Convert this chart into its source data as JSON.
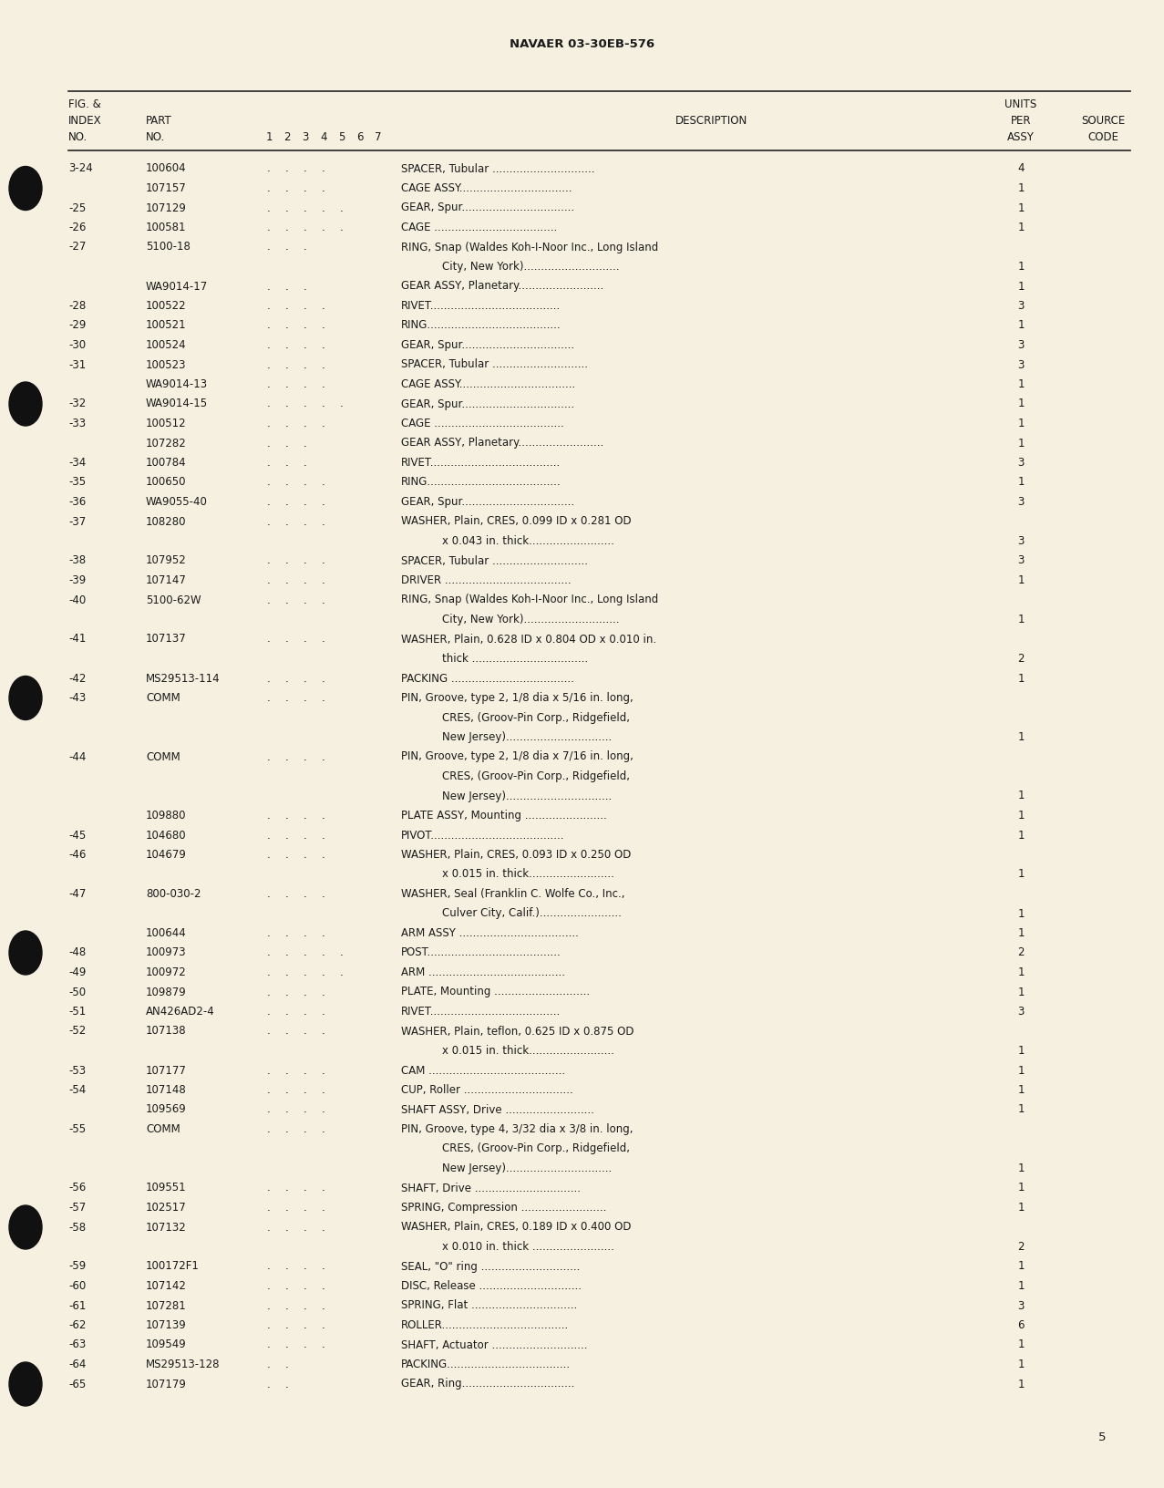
{
  "page_title": "NAVAER 03-30EB-576",
  "page_number": "5",
  "bg_color": "#f5f0e0",
  "rows": [
    {
      "fig": "3-24",
      "part": "100604",
      "d1": ".",
      "d2": ".",
      "d3": ".",
      "d4": ".",
      "d5": "",
      "d6": "",
      "d7": "",
      "desc": "SPACER, Tubular ..............................",
      "qty": "4"
    },
    {
      "fig": "",
      "part": "107157",
      "d1": ".",
      "d2": ".",
      "d3": ".",
      "d4": ".",
      "d5": "",
      "d6": "",
      "d7": "",
      "desc": "CAGE ASSY.................................",
      "qty": "1"
    },
    {
      "fig": "-25",
      "part": "107129",
      "d1": ".",
      "d2": ".",
      "d3": ".",
      "d4": ".",
      "d5": ".",
      "d6": "",
      "d7": "",
      "desc": "GEAR, Spur.................................",
      "qty": "1"
    },
    {
      "fig": "-26",
      "part": "100581",
      "d1": ".",
      "d2": ".",
      "d3": ".",
      "d4": ".",
      "d5": ".",
      "d6": "",
      "d7": "",
      "desc": "CAGE ....................................",
      "qty": "1"
    },
    {
      "fig": "-27",
      "part": "5100-18",
      "d1": ".",
      "d2": ".",
      "d3": ".",
      "d4": "",
      "d5": "",
      "d6": "",
      "d7": "",
      "desc": "RING, Snap (Waldes Koh-I-Noor Inc., Long Island",
      "qty": ""
    },
    {
      "fig": "",
      "part": "",
      "d1": "",
      "d2": "",
      "d3": "",
      "d4": "",
      "d5": "",
      "d6": "",
      "d7": "",
      "desc": "            City, New York)............................",
      "qty": "1"
    },
    {
      "fig": "",
      "part": "WA9014-17",
      "d1": ".",
      "d2": ".",
      "d3": ".",
      "d4": "",
      "d5": "",
      "d6": "",
      "d7": "",
      "desc": "GEAR ASSY, Planetary.........................",
      "qty": "1"
    },
    {
      "fig": "-28",
      "part": "100522",
      "d1": ".",
      "d2": ".",
      "d3": ".",
      "d4": ".",
      "d5": "",
      "d6": "",
      "d7": "",
      "desc": "RIVET......................................",
      "qty": "3"
    },
    {
      "fig": "-29",
      "part": "100521",
      "d1": ".",
      "d2": ".",
      "d3": ".",
      "d4": ".",
      "d5": "",
      "d6": "",
      "d7": "",
      "desc": "RING.......................................",
      "qty": "1"
    },
    {
      "fig": "-30",
      "part": "100524",
      "d1": ".",
      "d2": ".",
      "d3": ".",
      "d4": ".",
      "d5": "",
      "d6": "",
      "d7": "",
      "desc": "GEAR, Spur.................................",
      "qty": "3"
    },
    {
      "fig": "-31",
      "part": "100523",
      "d1": ".",
      "d2": ".",
      "d3": ".",
      "d4": ".",
      "d5": "",
      "d6": "",
      "d7": "",
      "desc": "SPACER, Tubular ............................",
      "qty": "3"
    },
    {
      "fig": "",
      "part": "WA9014-13",
      "d1": ".",
      "d2": ".",
      "d3": ".",
      "d4": ".",
      "d5": "",
      "d6": "",
      "d7": "",
      "desc": "CAGE ASSY..................................",
      "qty": "1"
    },
    {
      "fig": "-32",
      "part": "WA9014-15",
      "d1": ".",
      "d2": ".",
      "d3": ".",
      "d4": ".",
      "d5": ".",
      "d6": "",
      "d7": "",
      "desc": "GEAR, Spur.................................",
      "qty": "1"
    },
    {
      "fig": "-33",
      "part": "100512",
      "d1": ".",
      "d2": ".",
      "d3": ".",
      "d4": ".",
      "d5": "",
      "d6": "",
      "d7": "",
      "desc": "CAGE ......................................",
      "qty": "1"
    },
    {
      "fig": "",
      "part": "107282",
      "d1": ".",
      "d2": ".",
      "d3": ".",
      "d4": "",
      "d5": "",
      "d6": "",
      "d7": "",
      "desc": "GEAR ASSY, Planetary.........................",
      "qty": "1"
    },
    {
      "fig": "-34",
      "part": "100784",
      "d1": ".",
      "d2": ".",
      "d3": ".",
      "d4": "",
      "d5": "",
      "d6": "",
      "d7": "",
      "desc": "RIVET......................................",
      "qty": "3"
    },
    {
      "fig": "-35",
      "part": "100650",
      "d1": ".",
      "d2": ".",
      "d3": ".",
      "d4": ".",
      "d5": "",
      "d6": "",
      "d7": "",
      "desc": "RING.......................................",
      "qty": "1"
    },
    {
      "fig": "-36",
      "part": "WA9055-40",
      "d1": ".",
      "d2": ".",
      "d3": ".",
      "d4": ".",
      "d5": "",
      "d6": "",
      "d7": "",
      "desc": "GEAR, Spur.................................",
      "qty": "3"
    },
    {
      "fig": "-37",
      "part": "108280",
      "d1": ".",
      "d2": ".",
      "d3": ".",
      "d4": ".",
      "d5": "",
      "d6": "",
      "d7": "",
      "desc": "WASHER, Plain, CRES, 0.099 ID x 0.281 OD",
      "qty": ""
    },
    {
      "fig": "",
      "part": "",
      "d1": "",
      "d2": "",
      "d3": "",
      "d4": "",
      "d5": "",
      "d6": "",
      "d7": "",
      "desc": "            x 0.043 in. thick.........................",
      "qty": "3"
    },
    {
      "fig": "-38",
      "part": "107952",
      "d1": ".",
      "d2": ".",
      "d3": ".",
      "d4": ".",
      "d5": "",
      "d6": "",
      "d7": "",
      "desc": "SPACER, Tubular ............................",
      "qty": "3"
    },
    {
      "fig": "-39",
      "part": "107147",
      "d1": ".",
      "d2": ".",
      "d3": ".",
      "d4": ".",
      "d5": "",
      "d6": "",
      "d7": "",
      "desc": "DRIVER .....................................",
      "qty": "1"
    },
    {
      "fig": "-40",
      "part": "5100-62W",
      "d1": ".",
      "d2": ".",
      "d3": ".",
      "d4": ".",
      "d5": "",
      "d6": "",
      "d7": "",
      "desc": "RING, Snap (Waldes Koh-I-Noor Inc., Long Island",
      "qty": ""
    },
    {
      "fig": "",
      "part": "",
      "d1": "",
      "d2": "",
      "d3": "",
      "d4": "",
      "d5": "",
      "d6": "",
      "d7": "",
      "desc": "            City, New York)............................",
      "qty": "1"
    },
    {
      "fig": "-41",
      "part": "107137",
      "d1": ".",
      "d2": ".",
      "d3": ".",
      "d4": ".",
      "d5": "",
      "d6": "",
      "d7": "",
      "desc": "WASHER, Plain, 0.628 ID x 0.804 OD x 0.010 in.",
      "qty": ""
    },
    {
      "fig": "",
      "part": "",
      "d1": "",
      "d2": "",
      "d3": "",
      "d4": "",
      "d5": "",
      "d6": "",
      "d7": "",
      "desc": "            thick ..................................",
      "qty": "2"
    },
    {
      "fig": "-42",
      "part": "MS29513-114",
      "d1": ".",
      "d2": ".",
      "d3": ".",
      "d4": ".",
      "d5": "",
      "d6": "",
      "d7": "",
      "desc": "PACKING ....................................",
      "qty": "1"
    },
    {
      "fig": "-43",
      "part": "COMM",
      "d1": ".",
      "d2": ".",
      "d3": ".",
      "d4": ".",
      "d5": "",
      "d6": "",
      "d7": "",
      "desc": "PIN, Groove, type 2, 1/8 dia x 5/16 in. long,",
      "qty": ""
    },
    {
      "fig": "",
      "part": "",
      "d1": "",
      "d2": "",
      "d3": "",
      "d4": "",
      "d5": "",
      "d6": "",
      "d7": "",
      "desc": "            CRES, (Groov-Pin Corp., Ridgefield,",
      "qty": ""
    },
    {
      "fig": "",
      "part": "",
      "d1": "",
      "d2": "",
      "d3": "",
      "d4": "",
      "d5": "",
      "d6": "",
      "d7": "",
      "desc": "            New Jersey)...............................",
      "qty": "1"
    },
    {
      "fig": "-44",
      "part": "COMM",
      "d1": ".",
      "d2": ".",
      "d3": ".",
      "d4": ".",
      "d5": "",
      "d6": "",
      "d7": "",
      "desc": "PIN, Groove, type 2, 1/8 dia x 7/16 in. long,",
      "qty": ""
    },
    {
      "fig": "",
      "part": "",
      "d1": "",
      "d2": "",
      "d3": "",
      "d4": "",
      "d5": "",
      "d6": "",
      "d7": "",
      "desc": "            CRES, (Groov-Pin Corp., Ridgefield,",
      "qty": ""
    },
    {
      "fig": "",
      "part": "",
      "d1": "",
      "d2": "",
      "d3": "",
      "d4": "",
      "d5": "",
      "d6": "",
      "d7": "",
      "desc": "            New Jersey)...............................",
      "qty": "1"
    },
    {
      "fig": "",
      "part": "109880",
      "d1": ".",
      "d2": ".",
      "d3": ".",
      "d4": ".",
      "d5": "",
      "d6": "",
      "d7": "",
      "desc": "PLATE ASSY, Mounting ........................",
      "qty": "1"
    },
    {
      "fig": "-45",
      "part": "104680",
      "d1": ".",
      "d2": ".",
      "d3": ".",
      "d4": ".",
      "d5": "",
      "d6": "",
      "d7": "",
      "desc": "PIVOT.......................................",
      "qty": "1"
    },
    {
      "fig": "-46",
      "part": "104679",
      "d1": ".",
      "d2": ".",
      "d3": ".",
      "d4": ".",
      "d5": "",
      "d6": "",
      "d7": "",
      "desc": "WASHER, Plain, CRES, 0.093 ID x 0.250 OD",
      "qty": ""
    },
    {
      "fig": "",
      "part": "",
      "d1": "",
      "d2": "",
      "d3": "",
      "d4": "",
      "d5": "",
      "d6": "",
      "d7": "",
      "desc": "            x 0.015 in. thick.........................",
      "qty": "1"
    },
    {
      "fig": "-47",
      "part": "800-030-2",
      "d1": ".",
      "d2": ".",
      "d3": ".",
      "d4": ".",
      "d5": "",
      "d6": "",
      "d7": "",
      "desc": "WASHER, Seal (Franklin C. Wolfe Co., Inc.,",
      "qty": ""
    },
    {
      "fig": "",
      "part": "",
      "d1": "",
      "d2": "",
      "d3": "",
      "d4": "",
      "d5": "",
      "d6": "",
      "d7": "",
      "desc": "            Culver City, Calif.)........................",
      "qty": "1"
    },
    {
      "fig": "",
      "part": "100644",
      "d1": ".",
      "d2": ".",
      "d3": ".",
      "d4": ".",
      "d5": "",
      "d6": "",
      "d7": "",
      "desc": "ARM ASSY ...................................",
      "qty": "1"
    },
    {
      "fig": "-48",
      "part": "100973",
      "d1": ".",
      "d2": ".",
      "d3": ".",
      "d4": ".",
      "d5": ".",
      "d6": "",
      "d7": "",
      "desc": "POST.......................................",
      "qty": "2"
    },
    {
      "fig": "-49",
      "part": "100972",
      "d1": ".",
      "d2": ".",
      "d3": ".",
      "d4": ".",
      "d5": ".",
      "d6": "",
      "d7": "",
      "desc": "ARM ........................................",
      "qty": "1"
    },
    {
      "fig": "-50",
      "part": "109879",
      "d1": ".",
      "d2": ".",
      "d3": ".",
      "d4": ".",
      "d5": "",
      "d6": "",
      "d7": "",
      "desc": "PLATE, Mounting ............................",
      "qty": "1"
    },
    {
      "fig": "-51",
      "part": "AN426AD2-4",
      "d1": ".",
      "d2": ".",
      "d3": ".",
      "d4": ".",
      "d5": "",
      "d6": "",
      "d7": "",
      "desc": "RIVET......................................",
      "qty": "3"
    },
    {
      "fig": "-52",
      "part": "107138",
      "d1": ".",
      "d2": ".",
      "d3": ".",
      "d4": ".",
      "d5": "",
      "d6": "",
      "d7": "",
      "desc": "WASHER, Plain, teflon, 0.625 ID x 0.875 OD",
      "qty": ""
    },
    {
      "fig": "",
      "part": "",
      "d1": "",
      "d2": "",
      "d3": "",
      "d4": "",
      "d5": "",
      "d6": "",
      "d7": "",
      "desc": "            x 0.015 in. thick.........................",
      "qty": "1"
    },
    {
      "fig": "-53",
      "part": "107177",
      "d1": ".",
      "d2": ".",
      "d3": ".",
      "d4": ".",
      "d5": "",
      "d6": "",
      "d7": "",
      "desc": "CAM ........................................",
      "qty": "1"
    },
    {
      "fig": "-54",
      "part": "107148",
      "d1": ".",
      "d2": ".",
      "d3": ".",
      "d4": ".",
      "d5": "",
      "d6": "",
      "d7": "",
      "desc": "CUP, Roller ................................",
      "qty": "1"
    },
    {
      "fig": "",
      "part": "109569",
      "d1": ".",
      "d2": ".",
      "d3": ".",
      "d4": ".",
      "d5": "",
      "d6": "",
      "d7": "",
      "desc": "SHAFT ASSY, Drive ..........................",
      "qty": "1"
    },
    {
      "fig": "-55",
      "part": "COMM",
      "d1": ".",
      "d2": ".",
      "d3": ".",
      "d4": ".",
      "d5": "",
      "d6": "",
      "d7": "",
      "desc": "PIN, Groove, type 4, 3/32 dia x 3/8 in. long,",
      "qty": ""
    },
    {
      "fig": "",
      "part": "",
      "d1": "",
      "d2": "",
      "d3": "",
      "d4": "",
      "d5": "",
      "d6": "",
      "d7": "",
      "desc": "            CRES, (Groov-Pin Corp., Ridgefield,",
      "qty": ""
    },
    {
      "fig": "",
      "part": "",
      "d1": "",
      "d2": "",
      "d3": "",
      "d4": "",
      "d5": "",
      "d6": "",
      "d7": "",
      "desc": "            New Jersey)...............................",
      "qty": "1"
    },
    {
      "fig": "-56",
      "part": "109551",
      "d1": ".",
      "d2": ".",
      "d3": ".",
      "d4": ".",
      "d5": "",
      "d6": "",
      "d7": "",
      "desc": "SHAFT, Drive ...............................",
      "qty": "1"
    },
    {
      "fig": "-57",
      "part": "102517",
      "d1": ".",
      "d2": ".",
      "d3": ".",
      "d4": ".",
      "d5": "",
      "d6": "",
      "d7": "",
      "desc": "SPRING, Compression .........................",
      "qty": "1"
    },
    {
      "fig": "-58",
      "part": "107132",
      "d1": ".",
      "d2": ".",
      "d3": ".",
      "d4": ".",
      "d5": "",
      "d6": "",
      "d7": "",
      "desc": "WASHER, Plain, CRES, 0.189 ID x 0.400 OD",
      "qty": ""
    },
    {
      "fig": "",
      "part": "",
      "d1": "",
      "d2": "",
      "d3": "",
      "d4": "",
      "d5": "",
      "d6": "",
      "d7": "",
      "desc": "            x 0.010 in. thick ........................",
      "qty": "2"
    },
    {
      "fig": "-59",
      "part": "100172F1",
      "d1": ".",
      "d2": ".",
      "d3": ".",
      "d4": ".",
      "d5": "",
      "d6": "",
      "d7": "",
      "desc": "SEAL, \"O\" ring .............................",
      "qty": "1"
    },
    {
      "fig": "-60",
      "part": "107142",
      "d1": ".",
      "d2": ".",
      "d3": ".",
      "d4": ".",
      "d5": "",
      "d6": "",
      "d7": "",
      "desc": "DISC, Release ..............................",
      "qty": "1"
    },
    {
      "fig": "-61",
      "part": "107281",
      "d1": ".",
      "d2": ".",
      "d3": ".",
      "d4": ".",
      "d5": "",
      "d6": "",
      "d7": "",
      "desc": "SPRING, Flat ...............................",
      "qty": "3"
    },
    {
      "fig": "-62",
      "part": "107139",
      "d1": ".",
      "d2": ".",
      "d3": ".",
      "d4": ".",
      "d5": "",
      "d6": "",
      "d7": "",
      "desc": "ROLLER.....................................",
      "qty": "6"
    },
    {
      "fig": "-63",
      "part": "109549",
      "d1": ".",
      "d2": ".",
      "d3": ".",
      "d4": ".",
      "d5": "",
      "d6": "",
      "d7": "",
      "desc": "SHAFT, Actuator ............................",
      "qty": "1"
    },
    {
      "fig": "-64",
      "part": "MS29513-128",
      "d1": ".",
      "d2": ".",
      "d3": "",
      "d4": "",
      "d5": "",
      "d6": "",
      "d7": "",
      "desc": "PACKING....................................",
      "qty": "1"
    },
    {
      "fig": "-65",
      "part": "107179",
      "d1": ".",
      "d2": ".",
      "d3": "",
      "d4": "",
      "d5": "",
      "d6": "",
      "d7": "",
      "desc": "GEAR, Ring.................................",
      "qty": "1"
    }
  ],
  "bullet_rows": [
    1,
    12,
    27,
    40,
    54,
    62
  ],
  "font_size": 8.5,
  "header_font_size": 8.5,
  "title_font_size": 9.5
}
